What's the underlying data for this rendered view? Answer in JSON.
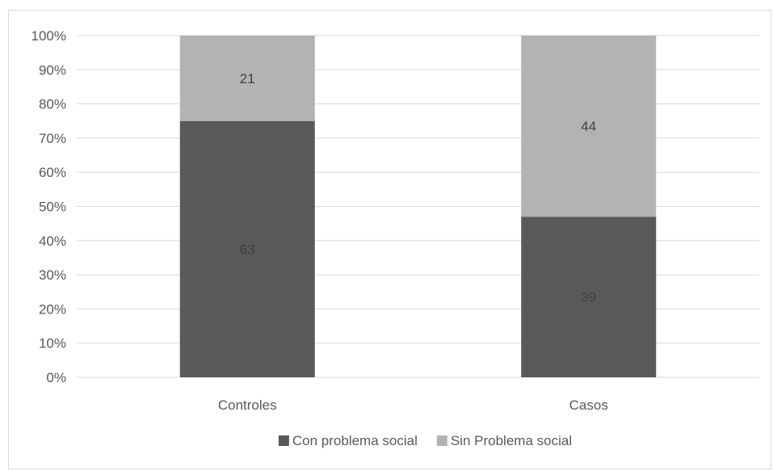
{
  "chart_data": {
    "type": "bar",
    "stacked": "percent",
    "categories": [
      "Controles",
      "Casos"
    ],
    "series": [
      {
        "name": "Con problema social",
        "values": [
          63,
          39
        ],
        "color": "#595959"
      },
      {
        "name": "Sin Problema social",
        "values": [
          21,
          44
        ],
        "color": "#b3b3b3"
      }
    ],
    "yticks": [
      "0%",
      "10%",
      "20%",
      "30%",
      "40%",
      "50%",
      "60%",
      "70%",
      "80%",
      "90%",
      "100%"
    ],
    "ylim": [
      0,
      100
    ],
    "grid": true,
    "legend": "bottom",
    "title": "",
    "xlabel": "",
    "ylabel": ""
  }
}
